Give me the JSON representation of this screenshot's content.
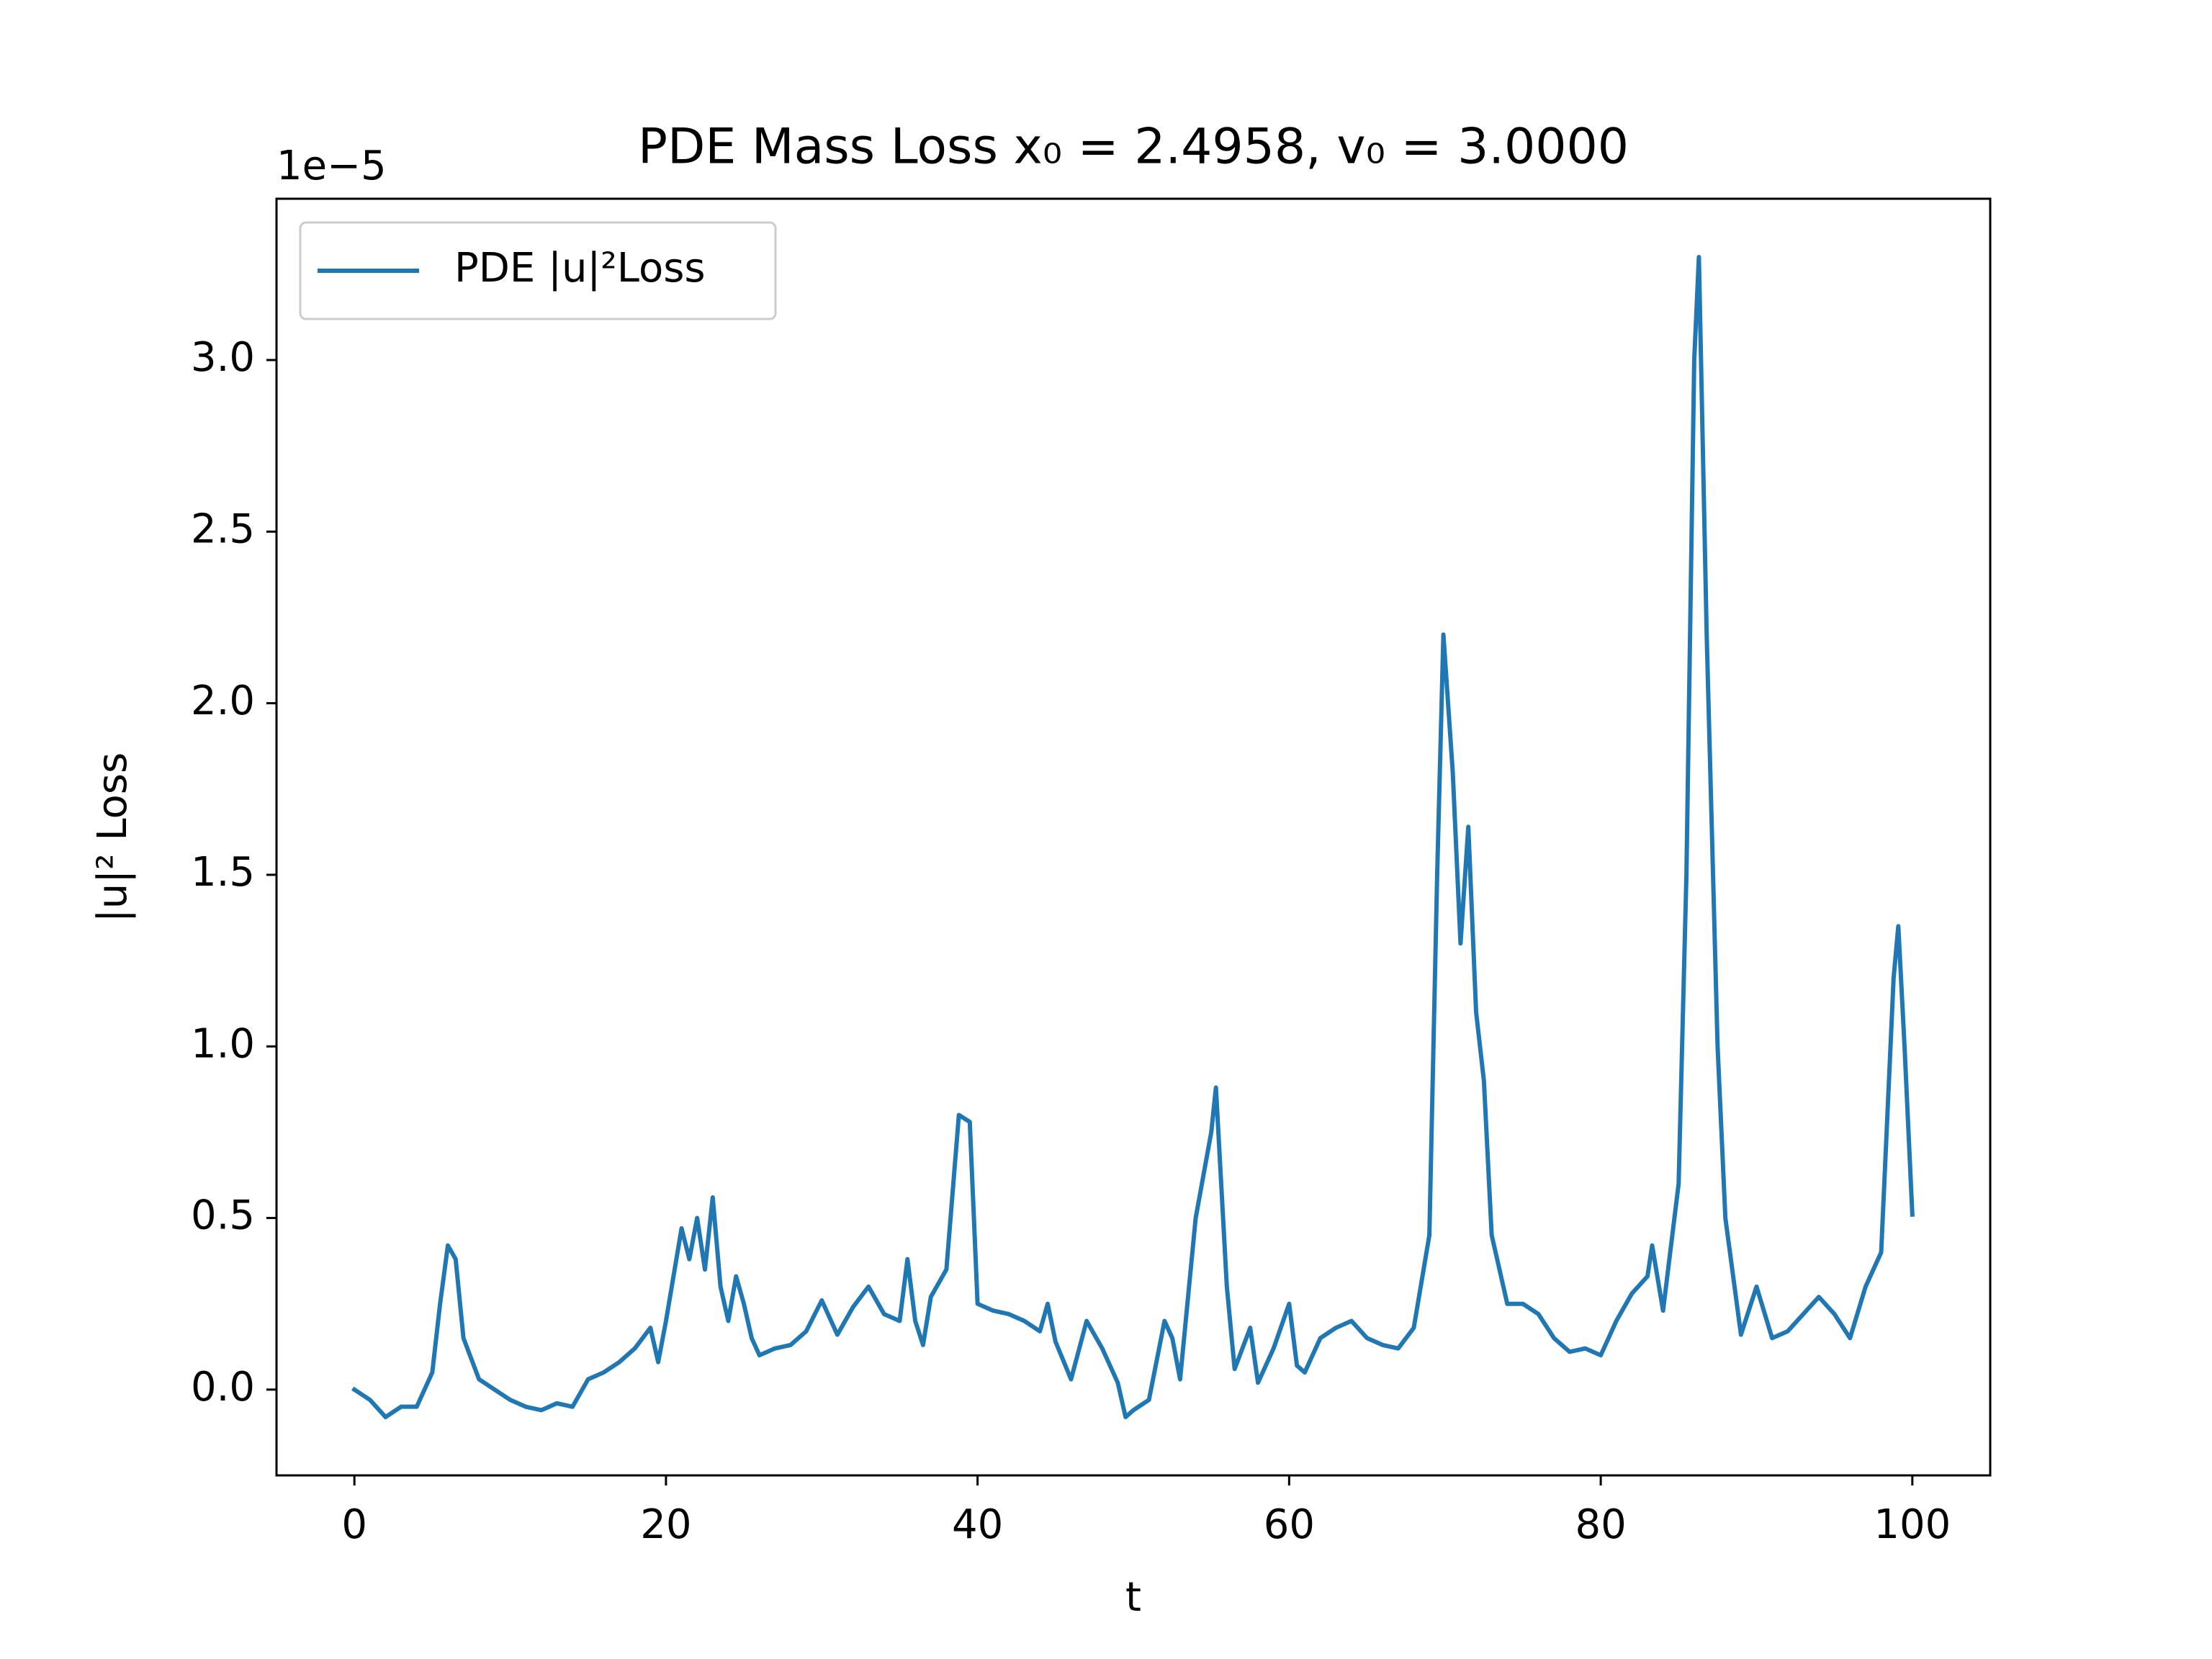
{
  "chart_data": {
    "type": "line",
    "title": "PDE Mass Loss x₀ = 2.4958, v₀ = 3.0000",
    "xlabel": "t",
    "ylabel": "|u|² Loss",
    "y_offset_text": "1e−5",
    "legend": "upper left",
    "x": [
      0,
      1,
      2,
      3,
      4,
      5,
      5.5,
      6,
      6.5,
      7,
      8,
      9,
      10,
      11,
      12,
      13,
      14,
      15,
      16,
      17,
      18,
      19,
      19.5,
      20,
      21,
      21.5,
      22,
      22.5,
      23,
      23.5,
      24,
      24.5,
      25,
      25.5,
      26,
      27,
      28,
      29,
      30,
      31,
      32,
      33,
      34,
      35,
      35.5,
      36,
      36.5,
      37,
      38,
      38.8,
      39.5,
      40,
      41,
      42,
      43,
      44,
      44.5,
      45,
      46,
      47,
      48,
      49,
      49.5,
      50,
      51,
      52,
      52.5,
      53,
      54,
      55,
      55.3,
      56,
      56.5,
      57.5,
      58,
      59,
      60,
      60.5,
      61,
      62,
      63,
      64,
      65,
      66,
      67,
      68,
      69,
      69.5,
      69.9,
      70.5,
      71,
      71.5,
      72,
      72.5,
      73,
      74,
      75,
      76,
      77,
      78,
      79,
      80,
      81,
      82,
      83,
      83.3,
      84,
      85,
      85.5,
      86,
      86.3,
      86.8,
      87.5,
      88,
      89,
      90,
      91,
      92,
      93,
      94,
      95,
      96,
      97,
      98,
      98.8,
      99.1,
      99.5,
      100
    ],
    "series": [
      {
        "name": "PDE |u|²Loss",
        "color": "#1f77b4",
        "values": [
          0,
          -0.03,
          -0.08,
          -0.05,
          -0.05,
          0.05,
          0.25,
          0.42,
          0.38,
          0.15,
          0.03,
          0,
          -0.03,
          -0.05,
          -0.06,
          -0.04,
          -0.05,
          0.03,
          0.05,
          0.08,
          0.12,
          0.18,
          0.08,
          0.2,
          0.47,
          0.38,
          0.5,
          0.35,
          0.56,
          0.3,
          0.2,
          0.33,
          0.25,
          0.15,
          0.1,
          0.12,
          0.13,
          0.17,
          0.26,
          0.16,
          0.24,
          0.3,
          0.22,
          0.2,
          0.38,
          0.2,
          0.13,
          0.27,
          0.35,
          0.8,
          0.78,
          0.25,
          0.23,
          0.22,
          0.2,
          0.17,
          0.25,
          0.14,
          0.03,
          0.2,
          0.12,
          0.02,
          -0.08,
          -0.06,
          -0.03,
          0.2,
          0.15,
          0.03,
          0.5,
          0.75,
          0.88,
          0.3,
          0.06,
          0.18,
          0.02,
          0.12,
          0.25,
          0.07,
          0.05,
          0.15,
          0.18,
          0.2,
          0.15,
          0.13,
          0.12,
          0.18,
          0.45,
          1.5,
          2.2,
          1.8,
          1.3,
          1.64,
          1.1,
          0.9,
          0.45,
          0.25,
          0.25,
          0.22,
          0.15,
          0.11,
          0.12,
          0.1,
          0.2,
          0.28,
          0.33,
          0.42,
          0.23,
          0.6,
          1.5,
          3.0,
          3.3,
          2.2,
          1.0,
          0.5,
          0.16,
          0.3,
          0.15,
          0.17,
          0.22,
          0.27,
          0.22,
          0.15,
          0.3,
          0.4,
          1.2,
          1.35,
          1.0,
          0.51
        ]
      }
    ],
    "xlim": [
      -5,
      105
    ],
    "ylim": [
      -0.25,
      3.47
    ],
    "xticks": [
      0,
      20,
      40,
      60,
      80,
      100
    ],
    "yticks": [
      {
        "value": 0,
        "label": "0.0"
      },
      0.5,
      {
        "value": 1,
        "label": "1.0"
      },
      1.5,
      {
        "value": 2,
        "label": "2.0"
      },
      2.5,
      {
        "value": 3,
        "label": "3.0"
      }
    ]
  }
}
